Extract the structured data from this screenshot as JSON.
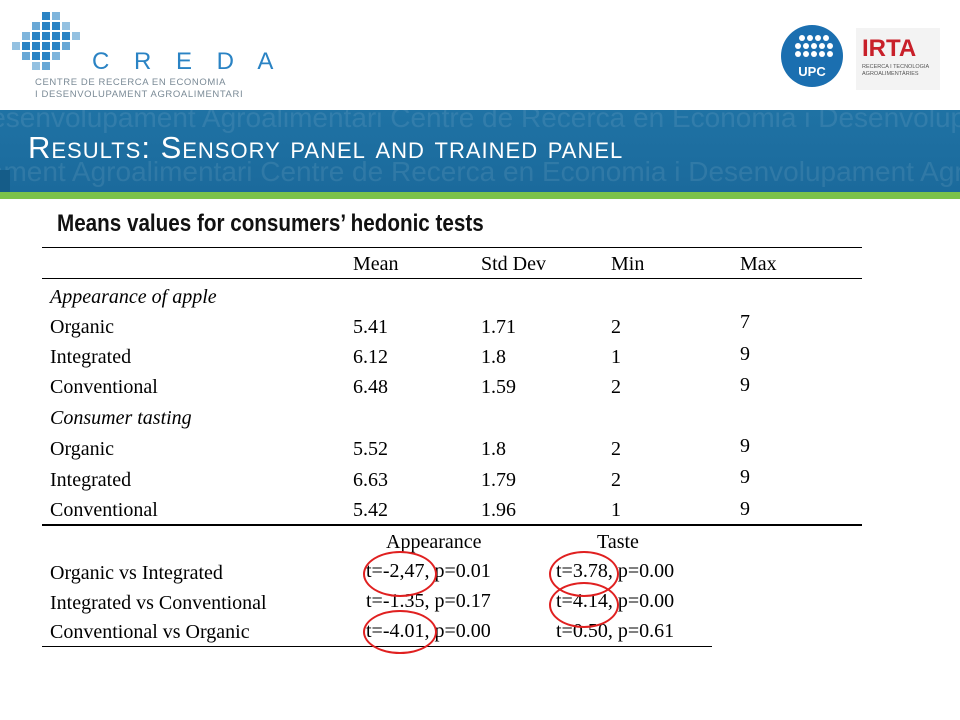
{
  "header": {
    "creda": {
      "name": "C R E D A",
      "subtitle_line1": "CENTRE DE RECERCA EN ECONOMIA",
      "subtitle_line2": "I DESENVOLUPAMENT AGROALIMENTARI"
    },
    "upc": {
      "label": "UPC"
    },
    "irta": {
      "label": "IRTA",
      "tagline": [
        "RECERCA I TECNOLOGIA",
        "AGROALIMENTÀRIES"
      ]
    }
  },
  "slide": {
    "title": "Results: Sensory panel and trained panel",
    "band_watermark": "Desenvolupament Agroalimentari Centre de Recerca en Economia i Desenvolupament Agroalimentari Centre de Recerca en Economia i Desenvolupament",
    "subheading": "Means values for consumers’ hedonic tests"
  },
  "table1": {
    "columns": [
      "Mean",
      "Std Dev",
      "Min",
      "Max"
    ],
    "sections": [
      {
        "title": "Appearance of apple",
        "rows": [
          {
            "label": "Organic",
            "mean": "5.41",
            "sd": "1.71",
            "min": "2",
            "max": "7"
          },
          {
            "label": "Integrated",
            "mean": "6.12",
            "sd": "1.8",
            "min": "1",
            "max": "9"
          },
          {
            "label": "Conventional",
            "mean": "6.48",
            "sd": "1.59",
            "min": "2",
            "max": "9"
          }
        ]
      },
      {
        "title": "Consumer tasting",
        "rows": [
          {
            "label": "Organic",
            "mean": "5.52",
            "sd": "1.8",
            "min": "2",
            "max": "9"
          },
          {
            "label": "Integrated",
            "mean": "6.63",
            "sd": "1.79",
            "min": "2",
            "max": "9"
          },
          {
            "label": "Conventional",
            "mean": "5.42",
            "sd": "1.96",
            "min": "1",
            "max": "9"
          }
        ]
      }
    ]
  },
  "table2": {
    "columns": [
      "Appearance",
      "Taste"
    ],
    "rows": [
      {
        "label": "Organic vs Integrated",
        "appearance": "t=-2,47, p=0.01",
        "taste": "t=3.78, p=0.00"
      },
      {
        "label": "Integrated vs Conventional",
        "appearance": "t=-1.35, p=0.17",
        "taste": "t=4.14, p=0.00"
      },
      {
        "label": "Conventional vs Organic",
        "appearance": "t=-4.01, p=0.00",
        "taste": "t=0.50, p=0.61"
      }
    ]
  },
  "colors": {
    "band": "#1f72a4",
    "green_bar": "#7cc24a",
    "highlight_circle": "#e02020",
    "creda_blue": "#2a83c4",
    "irta_red": "#c8202a"
  }
}
